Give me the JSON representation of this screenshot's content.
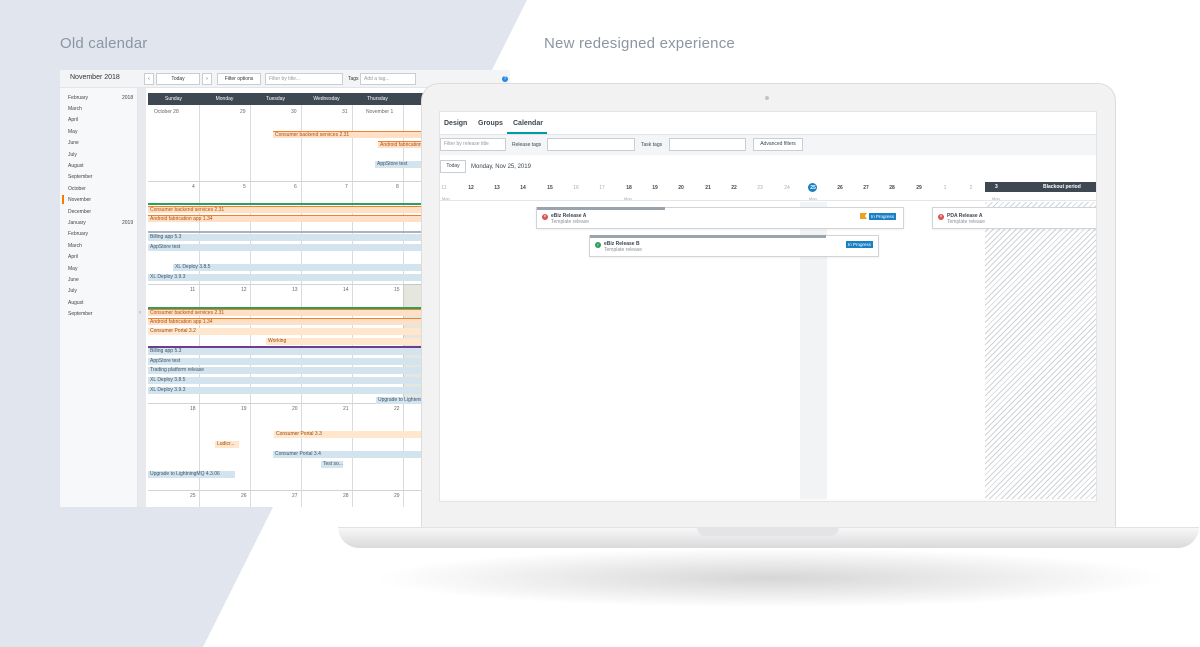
{
  "headings": {
    "old": "Old calendar",
    "new": "New redesigned experience"
  },
  "colors": {
    "left_panel": "#e1e6ee",
    "accent_orange": "#f57c00",
    "accent_blue": "#1b7fc4",
    "accent_teal": "#0099a8",
    "dark_header": "#3e4852"
  },
  "old_calendar": {
    "month_title": "November 2018",
    "prev_label": "‹",
    "today_label": "Today",
    "next_label": "›",
    "filter_options_label": "Filter options",
    "filter_placeholder": "Filter by title...",
    "tags_label": "Tags",
    "tags_placeholder": "Add a tag...",
    "help_icon": "question-circle-icon",
    "help_label": "?",
    "collapse_label": "‹",
    "sidebar_months": [
      "February",
      "March",
      "April",
      "May",
      "June",
      "July",
      "August",
      "September",
      "October",
      "November",
      "December",
      "January",
      "February",
      "March",
      "April",
      "May",
      "June",
      "July",
      "August",
      "September"
    ],
    "sidebar_years": [
      "2018",
      "2019"
    ],
    "active_month": "November",
    "days": [
      "Sunday",
      "Monday",
      "Tuesday",
      "Wednesday",
      "Thursday"
    ],
    "weeks": [
      [
        "October 28",
        "29",
        "30",
        "31",
        "November 1"
      ],
      [
        "4",
        "5",
        "6",
        "7",
        "8"
      ],
      [
        "11",
        "12",
        "13",
        "14",
        "15"
      ],
      [
        "18",
        "19",
        "20",
        "21",
        "22"
      ],
      [
        "25",
        "26",
        "27",
        "28",
        "29"
      ]
    ],
    "events": [
      "Consumer backend services 2.31",
      "Android fabrication app 1.34",
      "AppStore test",
      "Consumer backend services 2.31",
      "Android fabrication app 1.34",
      "Billing app 5.3",
      "AppStore test",
      "XL Deploy 3.8.5",
      "XL Deploy 3.9.3",
      "Consumer backend services 2.31",
      "Android fabrication app 1.34",
      "Consumer Portal 3.2",
      "Working",
      "Billing app 5.3",
      "AppStore test",
      "Trading platform release",
      "XL Deploy 3.8.5",
      "XL Deploy 3.9.3",
      "Upgrade to Lightening",
      "Consumer Portal 3.3",
      "Ludicr...",
      "Consumer Portal 3.4",
      "Test so...",
      "Upgrade to LightningMQ 4.3.06"
    ]
  },
  "new_calendar": {
    "tabs": [
      "Design",
      "Groups",
      "Calendar"
    ],
    "active_tab": "Calendar",
    "filter_placeholder": "Filter by release title",
    "release_tags_label": "Release tags",
    "task_tags_label": "Task tags",
    "advanced_filters_label": "Advanced filters",
    "today_label": "Today",
    "current_date": "Monday, Nov 25, 2019",
    "days": [
      "11",
      "12",
      "13",
      "14",
      "15",
      "16",
      "17",
      "18",
      "19",
      "20",
      "21",
      "22",
      "23",
      "24",
      "25",
      "26",
      "27",
      "28",
      "29",
      "30",
      "1",
      "2",
      "3"
    ],
    "weekend_days": [
      "11",
      "16",
      "17",
      "23",
      "24",
      "30",
      "1",
      "2"
    ],
    "today_day": "25",
    "week_labels": [
      "Mon",
      "Mon",
      "Mon",
      "Mon"
    ],
    "blackout_day": "3",
    "blackout_label": "Blackout period",
    "releases": [
      {
        "title": "eBiz Release A",
        "subtitle": "Template release",
        "status": "In Progress",
        "state": "failed",
        "progress": 0.35
      },
      {
        "title": "eBiz Release B",
        "subtitle": "Template release",
        "status": "In Progress",
        "state": "ok",
        "progress": 0.82
      },
      {
        "title": "PDA Release A",
        "subtitle": "Template release",
        "state": "failed",
        "progress": 0.0
      }
    ]
  }
}
